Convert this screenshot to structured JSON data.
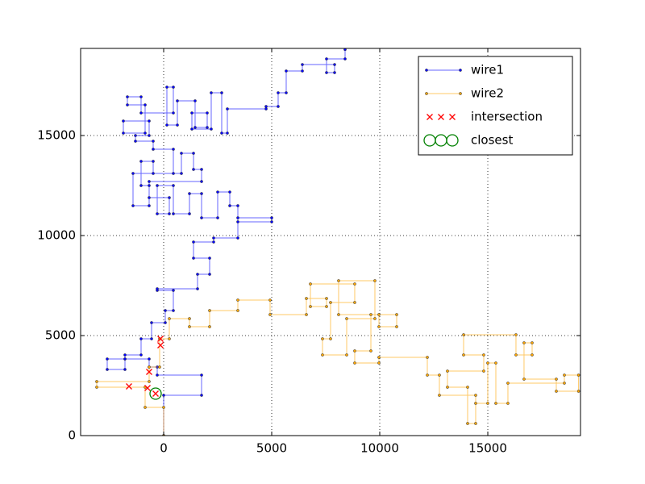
{
  "chart_data": {
    "type": "line",
    "xlim": [
      -3843,
      19290
    ],
    "ylim": [
      0,
      19355
    ],
    "xticks": [
      0,
      5000,
      10000,
      15000
    ],
    "yticks": [
      0,
      5000,
      10000,
      15000
    ],
    "grid": true,
    "legend_loc": "upper right",
    "series": [
      {
        "name": "wire1",
        "color": "#0000ff",
        "marker": ".",
        "linestyle": "-",
        "x": [
          0,
          0,
          1754,
          1754,
          -298,
          -298,
          -672,
          -672,
          -1791,
          -1791,
          -2612,
          -2612,
          -1791,
          -1791,
          -1045,
          -1045,
          -560,
          -560,
          75,
          75,
          448,
          448,
          -298,
          -298,
          1567,
          1567,
          2127,
          2127,
          1381,
          1381,
          2313,
          2313,
          3433,
          3433,
          5000,
          5000,
          3433,
          3433,
          3060,
          3060,
          2500,
          2500,
          1754,
          1754,
          1194,
          1194,
          448,
          448,
          -298,
          -298,
          261,
          261,
          -672,
          -672,
          1754,
          1754,
          1381,
          1381,
          821,
          821,
          -1418,
          -1418,
          -672,
          -672,
          -1045,
          -1045,
          -485,
          -485,
          448,
          448,
          -485,
          -485,
          -1306,
          -1306,
          -672,
          -672,
          -1866,
          -1866,
          -858,
          -858,
          -1679,
          -1679,
          -1045,
          -1045,
          448,
          448,
          149,
          149,
          634,
          634,
          1455,
          1455,
          2015,
          2015,
          1306,
          1306,
          2201,
          2201,
          2686,
          2686,
          2948,
          2948,
          4739,
          4739,
          5298,
          5298,
          5671,
          5671,
          6418,
          6418,
          7910,
          7910,
          7537,
          7537,
          8395,
          8395
        ],
        "values": [
          0,
          2016,
          2016,
          3024,
          3024,
          3427,
          3427,
          3830,
          3830,
          3306,
          3306,
          3830,
          3830,
          4032,
          4032,
          4838,
          4838,
          5645,
          5645,
          6250,
          6250,
          7258,
          7258,
          7338,
          7338,
          8064,
          8064,
          8870,
          8870,
          9677,
          9677,
          9878,
          9878,
          10886,
          10886,
          10685,
          10685,
          11491,
          11491,
          12176,
          12176,
          10886,
          10886,
          12096,
          12096,
          11088,
          11088,
          12499,
          12499,
          11088,
          11088,
          11894,
          11894,
          12701,
          12701,
          13306,
          13306,
          14112,
          14112,
          13104,
          13104,
          11491,
          11491,
          12499,
          12499,
          13709,
          13709,
          13104,
          13104,
          14314,
          14314,
          14717,
          14717,
          14999,
          14999,
          15725,
          15725,
          15120,
          15120,
          16531,
          16531,
          16934,
          16934,
          16128,
          16128,
          17418,
          17418,
          15523,
          15523,
          16733,
          16733,
          15402,
          15402,
          16128,
          16128,
          15322,
          15322,
          17136,
          17136,
          15120,
          15120,
          16330,
          16330,
          16451,
          16451,
          17136,
          17136,
          18225,
          18225,
          18547,
          18547,
          18144,
          18144,
          18830,
          18830,
          19300
        ]
      },
      {
        "name": "wire2",
        "color": "#ffa500",
        "marker": ".",
        "linestyle": "-",
        "x": [
          0,
          0,
          -858,
          -858,
          -3097,
          -3097,
          -672,
          -672,
          -187,
          -187,
          261,
          261,
          1194,
          1194,
          2127,
          2127,
          3433,
          3433,
          4925,
          4925,
          6604,
          6604,
          7537,
          7537,
          6791,
          6791,
          8842,
          8842,
          7723,
          7723,
          7350,
          7350,
          8470,
          8470,
          9775,
          9775,
          8096,
          8096,
          9962,
          9962,
          10783,
          10783,
          9589,
          9589,
          8842,
          8842,
          9962,
          9962,
          12201,
          12201,
          12760,
          12760,
          14439,
          14439,
          14066,
          14066,
          13133,
          13133,
          14812,
          14812,
          13880,
          13880,
          16304,
          16304,
          17051,
          17051,
          16677,
          16677,
          18170,
          18170,
          19200,
          19200,
          18543,
          18543,
          15931,
          15931,
          15372,
          15372,
          14998,
          14998,
          14439
        ],
        "values": [
          0,
          1411,
          1411,
          2419,
          2419,
          2701,
          2701,
          3427,
          3427,
          4838,
          4838,
          5846,
          5846,
          5443,
          5443,
          6250,
          6250,
          6774,
          6774,
          6048,
          6048,
          6854,
          6854,
          6451,
          6451,
          7580,
          7580,
          6653,
          6653,
          4838,
          4838,
          4032,
          4032,
          5846,
          5846,
          7741,
          7741,
          6048,
          6048,
          5443,
          5443,
          6048,
          6048,
          4234,
          4234,
          3629,
          3629,
          3911,
          3911,
          3024,
          3024,
          2016,
          2016,
          605,
          605,
          2419,
          2419,
          3225,
          3225,
          4032,
          4032,
          5040,
          5040,
          4032,
          4032,
          4637,
          4637,
          2822,
          2822,
          2218,
          2218,
          3024,
          3024,
          2621,
          2621,
          1613,
          1613,
          3629,
          3629,
          1613,
          1613
        ]
      },
      {
        "name": "intersection",
        "color": "#ff0000",
        "marker": "x",
        "linestyle": "none",
        "x": [
          -149,
          -149,
          -672,
          -1605,
          -746,
          -373
        ],
        "values": [
          4838,
          4516,
          3185,
          2459,
          2379,
          2096
        ]
      },
      {
        "name": "closest",
        "color": "#008000",
        "marker": "o",
        "linestyle": "none",
        "x": [
          -373
        ],
        "values": [
          2096
        ]
      }
    ]
  }
}
